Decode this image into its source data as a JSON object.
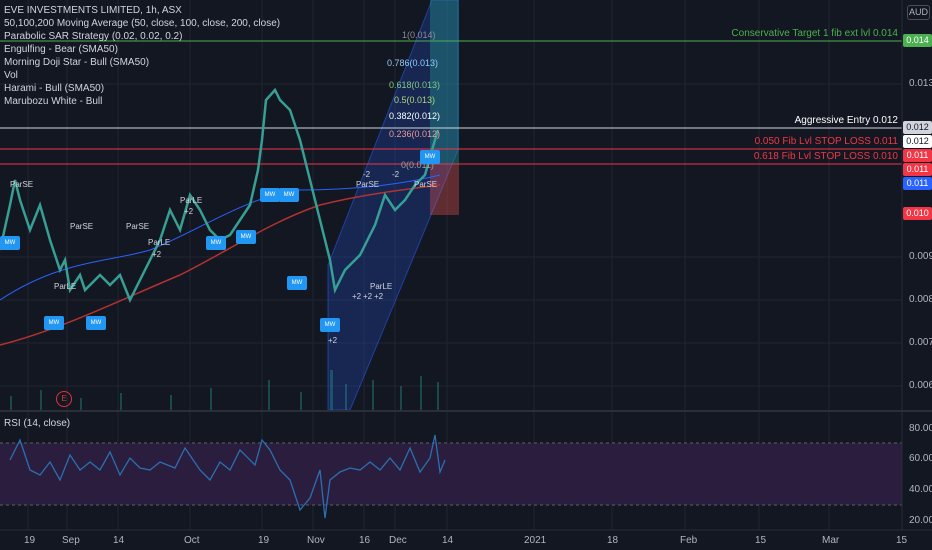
{
  "legend": {
    "title": "EVE INVESTMENTS LIMITED, 1h, ASX",
    "indicators": [
      "50,100,200 Moving Average (50, close, 100, close, 200, close)",
      "Parabolic SAR Strategy (0.02, 0.02, 0.2)",
      "Engulfing - Bear (SMA50)",
      "Morning Doji Star - Bull (SMA50)",
      "Vol",
      "Harami - Bull (SMA50)",
      "Marubozu White - Bull"
    ]
  },
  "currency": "AUD",
  "rsi_label": "RSI (14, close)",
  "price_axis": [
    "0.014",
    "0.013",
    "0.012",
    "0.011",
    "0.010",
    "0.009",
    "0.008",
    "0.007",
    "0.006"
  ],
  "rsi_axis": [
    "80.00",
    "60.00",
    "40.00",
    "20.00"
  ],
  "time_axis": [
    "19",
    "Sep",
    "14",
    "Oct",
    "19",
    "Nov",
    "16",
    "Dec",
    "14",
    "2021",
    "18",
    "Feb",
    "15",
    "Mar",
    "15"
  ],
  "horizontal_lines": {
    "conservative": "Conservative Target 1 fib ext lvl 0.014",
    "aggressive": "Aggressive Entry 0.012",
    "stop1": "0.050 Fib Lvl STOP LOSS 0.011",
    "stop2": "0.618 Fib Lvl STOP LOSS 0.010"
  },
  "price_tags": {
    "t1": "0.014",
    "t2": "0.012",
    "t3": "0.012",
    "t4": "0.011",
    "t5": "0.011",
    "t6": "0.011",
    "t7": "0.010"
  },
  "fib_levels": [
    "1(0.014)",
    "0.786(0.013)",
    "0.618(0.013)",
    "0.5(0.013)",
    "0.382(0.012)",
    "0.236(0.012)",
    "0(0.011)"
  ],
  "event_marker": "E",
  "signal_labels": [
    "ParSE",
    "ParSE",
    "ParSE",
    "ParLE",
    "+2",
    "ParLE",
    "+2",
    "-2",
    "ParSE",
    "ParLE",
    "+2",
    "+2",
    "+2",
    "ParLE",
    "+2",
    "ParSE",
    "-2"
  ],
  "badge_text": "MW",
  "colors": {
    "background": "#131722",
    "up": "#26a69a",
    "down": "#ef5350",
    "ma_red": "#b2322f",
    "ma_blue": "#2962ff",
    "rsi": "#2a6fb0",
    "rsi_band": "#2b1d3e",
    "conservative": "#4caf50",
    "stop": "#f23645"
  }
}
